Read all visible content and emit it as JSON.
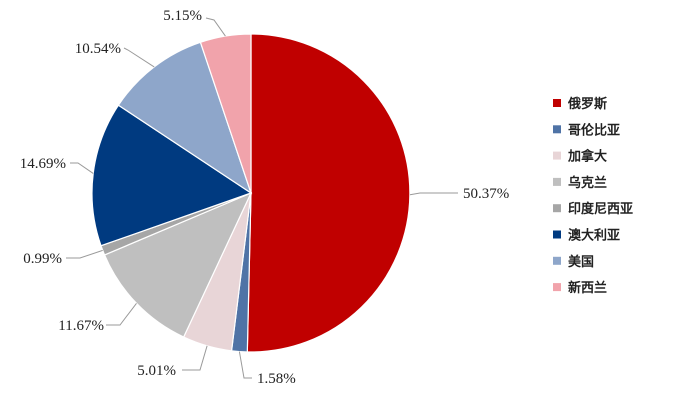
{
  "chart_data": {
    "type": "pie",
    "title": "",
    "legend_position": "right",
    "start_angle_deg": 0,
    "direction": "clockwise",
    "slices": [
      {
        "name": "俄罗斯",
        "value": 50.37,
        "label": "50.37%",
        "color": "#C00000"
      },
      {
        "name": "哥伦比亚",
        "value": 1.58,
        "label": "1.58%",
        "color": "#4F73A6"
      },
      {
        "name": "加拿大",
        "value": 5.01,
        "label": "5.01%",
        "color": "#E8D5D7"
      },
      {
        "name": "乌克兰",
        "value": 11.67,
        "label": "11.67%",
        "color": "#BFBFBF"
      },
      {
        "name": "印度尼西亚",
        "value": 0.99,
        "label": "0.99%",
        "color": "#A6A6A6"
      },
      {
        "name": "澳大利亚",
        "value": 14.69,
        "label": "14.69%",
        "color": "#003A80"
      },
      {
        "name": "美国",
        "value": 10.54,
        "label": "10.54%",
        "color": "#8EA6CA"
      },
      {
        "name": "新西兰",
        "value": 5.15,
        "label": "5.15%",
        "color": "#F1A3AB"
      }
    ]
  }
}
